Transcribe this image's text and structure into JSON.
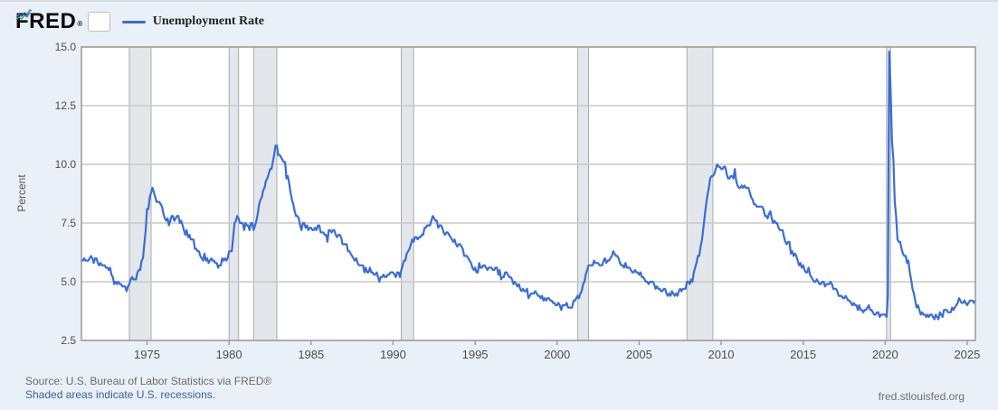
{
  "header": {
    "logo_text": "FRED",
    "logo_registered": "®",
    "legend": {
      "label": "Unemployment Rate",
      "line_color": "#3b6dd3"
    }
  },
  "footer": {
    "source_line": "Source: U.S. Bureau of Labor Statistics via FRED®",
    "recession_note": "Shaded areas indicate U.S. recessions.",
    "watermark": "fred.stlouisfed.org"
  },
  "colors": {
    "background": "#eaf0f8",
    "plot_bg": "#ffffff",
    "plot_border": "#9b9b9b",
    "grid": "#c9c9c9",
    "recession_fill": "#e3e6ea",
    "recession_edge": "#a9adb2",
    "line": "#3b6dd3",
    "link": "#3d5f9f",
    "text_muted": "#6b6b6b",
    "tick_text": "#4d4d4d"
  },
  "chart_data": {
    "type": "line",
    "title": "Unemployment Rate",
    "xlabel": "",
    "ylabel": "Percent",
    "legend_position": "top-left",
    "grid": "horizontal-only",
    "xlim": [
      1971.0,
      2025.5
    ],
    "ylim": [
      2.5,
      15.0
    ],
    "x_ticks": [
      1975,
      1980,
      1985,
      1990,
      1995,
      2000,
      2005,
      2010,
      2015,
      2020,
      2025
    ],
    "y_ticks": [
      2.5,
      5.0,
      7.5,
      10.0,
      12.5,
      15.0
    ],
    "recession_bands": [
      [
        1973.917,
        1975.25
      ],
      [
        1980.0,
        1980.583
      ],
      [
        1981.5,
        1982.917
      ],
      [
        1990.5,
        1991.25
      ],
      [
        2001.25,
        2001.917
      ],
      [
        2007.917,
        2009.5
      ],
      [
        2020.083,
        2020.333
      ]
    ],
    "series": [
      {
        "name": "Unemployment Rate",
        "units": "Percent",
        "frequency": "monthly",
        "start_year": 1971,
        "start_month": 1,
        "end": "2025-07",
        "values_by_year": [
          [
            1971,
            [
              5.9,
              5.9,
              6.0,
              5.9,
              5.9,
              5.9,
              6.0,
              6.1,
              6.0,
              5.8,
              6.0,
              6.0
            ]
          ],
          [
            1972,
            [
              5.8,
              5.7,
              5.8,
              5.7,
              5.7,
              5.7,
              5.6,
              5.6,
              5.5,
              5.6,
              5.3,
              5.2
            ]
          ],
          [
            1973,
            [
              4.9,
              5.0,
              4.9,
              5.0,
              4.9,
              4.9,
              4.8,
              4.8,
              4.8,
              4.6,
              4.8,
              4.9
            ]
          ],
          [
            1974,
            [
              5.1,
              5.2,
              5.1,
              5.1,
              5.1,
              5.4,
              5.5,
              5.5,
              5.9,
              6.0,
              6.6,
              7.2
            ]
          ],
          [
            1975,
            [
              8.1,
              8.1,
              8.6,
              8.8,
              9.0,
              8.8,
              8.6,
              8.4,
              8.4,
              8.4,
              8.3,
              8.2
            ]
          ],
          [
            1976,
            [
              7.9,
              7.7,
              7.6,
              7.7,
              7.4,
              7.6,
              7.8,
              7.8,
              7.6,
              7.7,
              7.8,
              7.8
            ]
          ],
          [
            1977,
            [
              7.5,
              7.6,
              7.4,
              7.2,
              7.0,
              7.2,
              6.9,
              7.0,
              6.8,
              6.8,
              6.8,
              6.4
            ]
          ],
          [
            1978,
            [
              6.4,
              6.3,
              6.3,
              6.1,
              6.0,
              5.9,
              6.2,
              5.9,
              6.0,
              5.8,
              5.9,
              6.0
            ]
          ],
          [
            1979,
            [
              5.9,
              5.9,
              5.8,
              5.8,
              5.6,
              5.7,
              5.7,
              6.0,
              5.9,
              6.0,
              5.9,
              6.0
            ]
          ],
          [
            1980,
            [
              6.3,
              6.3,
              6.3,
              6.9,
              7.5,
              7.6,
              7.8,
              7.7,
              7.5,
              7.5,
              7.5,
              7.2
            ]
          ],
          [
            1981,
            [
              7.5,
              7.4,
              7.4,
              7.2,
              7.5,
              7.5,
              7.2,
              7.4,
              7.6,
              7.9,
              8.3,
              8.5
            ]
          ],
          [
            1982,
            [
              8.6,
              8.9,
              9.0,
              9.3,
              9.4,
              9.6,
              9.8,
              9.8,
              10.1,
              10.4,
              10.8,
              10.8
            ]
          ],
          [
            1983,
            [
              10.4,
              10.4,
              10.3,
              10.2,
              10.1,
              10.1,
              9.4,
              9.5,
              9.2,
              8.8,
              8.5,
              8.3
            ]
          ],
          [
            1984,
            [
              8.0,
              7.8,
              7.8,
              7.7,
              7.4,
              7.2,
              7.5,
              7.5,
              7.3,
              7.4,
              7.2,
              7.3
            ]
          ],
          [
            1985,
            [
              7.3,
              7.2,
              7.2,
              7.3,
              7.2,
              7.4,
              7.4,
              7.1,
              7.1,
              7.1,
              7.0,
              7.0
            ]
          ],
          [
            1986,
            [
              6.7,
              7.2,
              7.2,
              7.1,
              7.2,
              7.2,
              7.0,
              6.9,
              7.0,
              7.0,
              6.9,
              6.6
            ]
          ],
          [
            1987,
            [
              6.6,
              6.6,
              6.6,
              6.3,
              6.3,
              6.2,
              6.1,
              6.0,
              5.9,
              6.0,
              5.8,
              5.7
            ]
          ],
          [
            1988,
            [
              5.7,
              5.7,
              5.7,
              5.4,
              5.6,
              5.4,
              5.4,
              5.6,
              5.4,
              5.4,
              5.3,
              5.3
            ]
          ],
          [
            1989,
            [
              5.4,
              5.2,
              5.0,
              5.2,
              5.2,
              5.3,
              5.2,
              5.2,
              5.3,
              5.3,
              5.4,
              5.4
            ]
          ],
          [
            1990,
            [
              5.4,
              5.3,
              5.2,
              5.4,
              5.4,
              5.2,
              5.5,
              5.7,
              5.9,
              5.9,
              6.2,
              6.3
            ]
          ],
          [
            1991,
            [
              6.4,
              6.6,
              6.8,
              6.7,
              6.9,
              6.9,
              6.8,
              6.9,
              6.9,
              7.0,
              7.0,
              7.3
            ]
          ],
          [
            1992,
            [
              7.3,
              7.4,
              7.4,
              7.4,
              7.6,
              7.8,
              7.7,
              7.6,
              7.6,
              7.3,
              7.4,
              7.4
            ]
          ],
          [
            1993,
            [
              7.3,
              7.1,
              7.0,
              7.1,
              7.1,
              7.0,
              6.9,
              6.8,
              6.7,
              6.8,
              6.6,
              6.5
            ]
          ],
          [
            1994,
            [
              6.6,
              6.6,
              6.5,
              6.4,
              6.1,
              6.1,
              6.1,
              6.0,
              5.9,
              5.8,
              5.6,
              5.5
            ]
          ],
          [
            1995,
            [
              5.6,
              5.4,
              5.4,
              5.8,
              5.6,
              5.6,
              5.7,
              5.7,
              5.6,
              5.5,
              5.6,
              5.6
            ]
          ],
          [
            1996,
            [
              5.6,
              5.5,
              5.5,
              5.6,
              5.6,
              5.3,
              5.5,
              5.1,
              5.2,
              5.2,
              5.4,
              5.4
            ]
          ],
          [
            1997,
            [
              5.3,
              5.2,
              5.2,
              5.1,
              4.9,
              5.0,
              4.9,
              4.8,
              4.9,
              4.7,
              4.6,
              4.7
            ]
          ],
          [
            1998,
            [
              4.6,
              4.6,
              4.7,
              4.3,
              4.4,
              4.5,
              4.5,
              4.5,
              4.6,
              4.5,
              4.4,
              4.4
            ]
          ],
          [
            1999,
            [
              4.3,
              4.4,
              4.2,
              4.3,
              4.2,
              4.3,
              4.3,
              4.2,
              4.2,
              4.1,
              4.1,
              4.0
            ]
          ],
          [
            2000,
            [
              4.0,
              4.1,
              4.0,
              3.8,
              4.0,
              4.0,
              4.0,
              4.1,
              3.9,
              3.9,
              3.9,
              3.9
            ]
          ],
          [
            2001,
            [
              4.2,
              4.2,
              4.3,
              4.4,
              4.3,
              4.5,
              4.6,
              4.9,
              5.0,
              5.3,
              5.5,
              5.7
            ]
          ],
          [
            2002,
            [
              5.7,
              5.7,
              5.7,
              5.9,
              5.8,
              5.8,
              5.8,
              5.7,
              5.7,
              5.7,
              5.9,
              6.0
            ]
          ],
          [
            2003,
            [
              5.8,
              5.9,
              5.9,
              6.0,
              6.1,
              6.3,
              6.2,
              6.1,
              6.1,
              6.0,
              5.8,
              5.7
            ]
          ],
          [
            2004,
            [
              5.7,
              5.6,
              5.8,
              5.6,
              5.6,
              5.6,
              5.5,
              5.4,
              5.4,
              5.5,
              5.4,
              5.4
            ]
          ],
          [
            2005,
            [
              5.3,
              5.4,
              5.2,
              5.2,
              5.1,
              5.0,
              5.0,
              4.9,
              5.0,
              5.0,
              5.0,
              4.9
            ]
          ],
          [
            2006,
            [
              4.7,
              4.8,
              4.7,
              4.7,
              4.6,
              4.6,
              4.7,
              4.7,
              4.5,
              4.4,
              4.5,
              4.4
            ]
          ],
          [
            2007,
            [
              4.6,
              4.5,
              4.4,
              4.5,
              4.4,
              4.6,
              4.7,
              4.6,
              4.7,
              4.7,
              4.7,
              5.0
            ]
          ],
          [
            2008,
            [
              5.0,
              4.9,
              5.1,
              5.0,
              5.4,
              5.6,
              5.8,
              6.1,
              6.1,
              6.5,
              6.8,
              7.3
            ]
          ],
          [
            2009,
            [
              7.8,
              8.3,
              8.7,
              9.0,
              9.4,
              9.5,
              9.5,
              9.6,
              9.8,
              10.0,
              9.9,
              9.9
            ]
          ],
          [
            2010,
            [
              9.8,
              9.8,
              9.9,
              9.9,
              9.6,
              9.4,
              9.4,
              9.5,
              9.5,
              9.4,
              9.8,
              9.3
            ]
          ],
          [
            2011,
            [
              9.1,
              9.0,
              9.0,
              9.1,
              9.0,
              9.1,
              9.0,
              9.0,
              9.0,
              8.8,
              8.6,
              8.5
            ]
          ],
          [
            2012,
            [
              8.3,
              8.3,
              8.2,
              8.2,
              8.2,
              8.2,
              8.2,
              8.1,
              7.8,
              7.8,
              7.7,
              7.9
            ]
          ],
          [
            2013,
            [
              8.0,
              7.7,
              7.5,
              7.6,
              7.5,
              7.5,
              7.3,
              7.2,
              7.2,
              7.2,
              6.9,
              6.7
            ]
          ],
          [
            2014,
            [
              6.6,
              6.7,
              6.7,
              6.2,
              6.3,
              6.1,
              6.2,
              6.1,
              5.9,
              5.7,
              5.8,
              5.6
            ]
          ],
          [
            2015,
            [
              5.7,
              5.5,
              5.4,
              5.4,
              5.6,
              5.3,
              5.2,
              5.1,
              5.0,
              5.0,
              5.1,
              5.0
            ]
          ],
          [
            2016,
            [
              4.9,
              4.9,
              5.0,
              5.0,
              4.8,
              4.9,
              4.9,
              4.9,
              5.0,
              4.9,
              4.7,
              4.7
            ]
          ],
          [
            2017,
            [
              4.7,
              4.6,
              4.4,
              4.4,
              4.4,
              4.3,
              4.3,
              4.4,
              4.3,
              4.2,
              4.2,
              4.1
            ]
          ],
          [
            2018,
            [
              4.0,
              4.1,
              4.0,
              4.0,
              3.8,
              4.0,
              3.8,
              3.8,
              3.7,
              3.8,
              3.8,
              3.9
            ]
          ],
          [
            2019,
            [
              4.0,
              3.8,
              3.8,
              3.7,
              3.6,
              3.6,
              3.7,
              3.7,
              3.5,
              3.6,
              3.6,
              3.6
            ]
          ],
          [
            2020,
            [
              3.6,
              3.5,
              4.4,
              14.8,
              13.2,
              11.0,
              10.2,
              8.4,
              7.8,
              6.8,
              6.7,
              6.7
            ]
          ],
          [
            2021,
            [
              6.4,
              6.2,
              6.1,
              6.1,
              5.8,
              5.9,
              5.4,
              5.1,
              4.7,
              4.5,
              4.2,
              3.9
            ]
          ],
          [
            2022,
            [
              4.0,
              3.8,
              3.6,
              3.7,
              3.6,
              3.6,
              3.5,
              3.6,
              3.5,
              3.6,
              3.6,
              3.5
            ]
          ],
          [
            2023,
            [
              3.4,
              3.6,
              3.5,
              3.4,
              3.7,
              3.6,
              3.5,
              3.8,
              3.8,
              3.8,
              3.7,
              3.7
            ]
          ],
          [
            2024,
            [
              3.7,
              3.9,
              3.8,
              3.9,
              4.0,
              4.1,
              4.3,
              4.2,
              4.1,
              4.1,
              4.2,
              4.1
            ]
          ],
          [
            2025,
            [
              4.0,
              4.1,
              4.2,
              4.2,
              4.2,
              4.1,
              4.2
            ]
          ]
        ]
      }
    ]
  }
}
